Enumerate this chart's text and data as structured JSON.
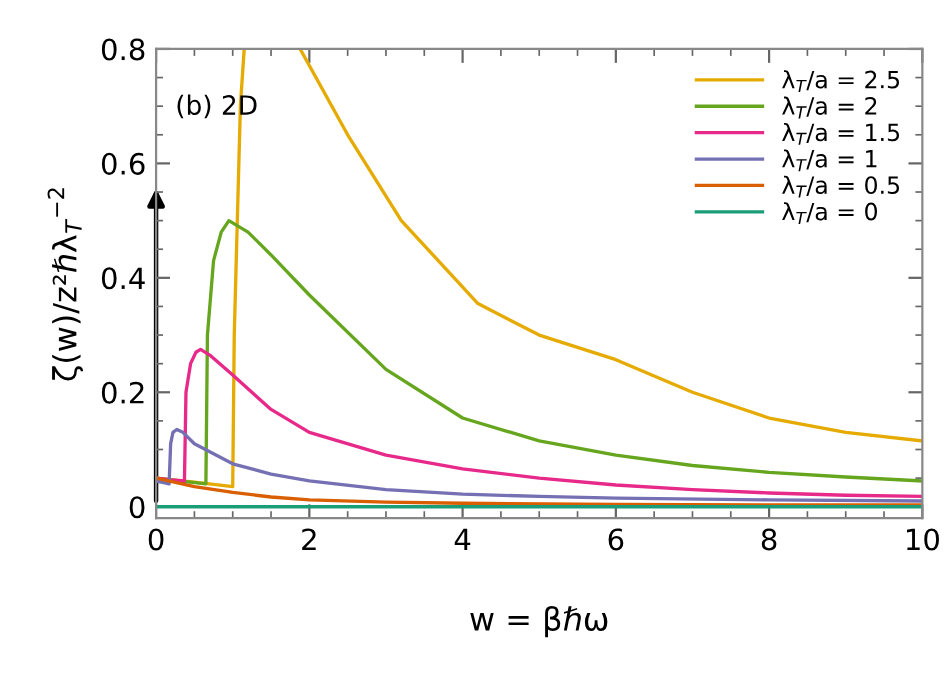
{
  "chart_data": {
    "type": "line",
    "xlabel": "w = βℏω",
    "ylabel": "ζ(w)/z²ℏλ$_{T}$$^{−2}$",
    "annotations": [
      "(b) 2D"
    ],
    "xlim": [
      0,
      10
    ],
    "ylim": [
      -0.02,
      0.8
    ],
    "xticks": [
      0,
      2,
      4,
      6,
      8,
      10
    ],
    "yticks": [
      0,
      0.2,
      0.4,
      0.6,
      0.8
    ],
    "grid": false,
    "legend": "top right",
    "line_style": "solid",
    "marker": "none",
    "series": [
      {
        "name": "λ$_{T}$/a = 2.5",
        "color": "#e6ab02",
        "x": [
          0,
          0.5,
          1.0,
          1.02,
          1.1,
          1.15,
          1.5,
          1.88,
          2.5,
          3.2,
          4.2,
          5,
          6,
          7,
          8,
          9,
          10
        ],
        "values": [
          0.05,
          0.043,
          0.035,
          0.3,
          0.7,
          0.8,
          null,
          0.8,
          0.65,
          0.5,
          0.355,
          0.3,
          0.257,
          0.2,
          0.155,
          0.13,
          0.115
        ]
      },
      {
        "name": "λ$_{T}$/a = 2",
        "color": "#66a61e",
        "x": [
          0,
          0.3,
          0.65,
          0.67,
          0.75,
          0.85,
          0.95,
          1.2,
          1.5,
          2,
          3,
          4,
          5,
          6,
          7,
          8,
          9,
          10
        ],
        "values": [
          0.05,
          0.045,
          0.04,
          0.3,
          0.43,
          0.48,
          0.5,
          0.48,
          0.44,
          0.37,
          0.24,
          0.155,
          0.115,
          0.09,
          0.072,
          0.06,
          0.052,
          0.045
        ]
      },
      {
        "name": "λ$_{T}$/a = 1.5",
        "color": "#e7298a",
        "x": [
          0,
          0.2,
          0.37,
          0.39,
          0.45,
          0.52,
          0.58,
          0.7,
          1,
          1.5,
          2,
          3,
          4,
          5,
          6,
          7,
          8,
          9,
          10
        ],
        "values": [
          0.05,
          0.047,
          0.045,
          0.2,
          0.25,
          0.27,
          0.275,
          0.265,
          0.23,
          0.17,
          0.13,
          0.09,
          0.066,
          0.05,
          0.038,
          0.03,
          0.024,
          0.02,
          0.018
        ]
      },
      {
        "name": "λ$_{T}$/a = 1",
        "color": "#7570b3",
        "x": [
          0,
          0.1,
          0.17,
          0.19,
          0.22,
          0.27,
          0.35,
          0.5,
          1,
          1.5,
          2,
          3,
          4,
          5,
          6,
          8,
          10
        ],
        "values": [
          0.045,
          0.042,
          0.04,
          0.11,
          0.13,
          0.135,
          0.13,
          0.11,
          0.075,
          0.057,
          0.045,
          0.03,
          0.022,
          0.018,
          0.015,
          0.012,
          0.01
        ]
      },
      {
        "name": "λ$_{T}$/a = 0.5",
        "color": "#d95f02",
        "x": [
          0,
          0.5,
          1,
          1.5,
          2,
          3,
          4,
          6,
          8,
          10
        ],
        "values": [
          0.05,
          0.035,
          0.025,
          0.017,
          0.012,
          0.008,
          0.006,
          0.004,
          0.003,
          0.003
        ]
      },
      {
        "name": "λ$_{T}$/a = 0",
        "color": "#1b9e77",
        "x": [
          0,
          10
        ],
        "values": [
          0,
          0
        ]
      }
    ]
  }
}
